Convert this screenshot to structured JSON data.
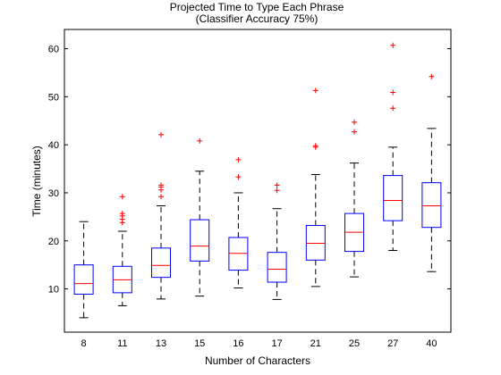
{
  "chart_data": {
    "type": "box",
    "title": "Projected Time to Type Each Phrase",
    "subtitle": "(Classifier Accuracy 75%)",
    "xlabel": "Number of Characters",
    "ylabel": "Time (minutes)",
    "ylim": [
      1,
      64
    ],
    "yticks": [
      10,
      20,
      30,
      40,
      50,
      60
    ],
    "grid": false,
    "colors": {
      "box": "#0000ff",
      "median": "#ff0000",
      "whisker": "#000000",
      "outlier": "#ff0000"
    },
    "categories": [
      "8",
      "11",
      "13",
      "15",
      "16",
      "17",
      "21",
      "25",
      "27",
      "40"
    ],
    "boxes": [
      {
        "min": 4.0,
        "q1": 8.9,
        "median": 11.1,
        "q3": 15.0,
        "max": 24.0,
        "outliers": []
      },
      {
        "min": 6.5,
        "q1": 9.2,
        "median": 11.9,
        "q3": 14.7,
        "max": 22.0,
        "outliers": [
          23.8,
          24.5,
          25.2,
          25.7,
          29.2
        ]
      },
      {
        "min": 7.9,
        "q1": 12.4,
        "median": 14.9,
        "q3": 18.5,
        "max": 27.3,
        "outliers": [
          29.2,
          30.6,
          31.2,
          31.6,
          42.1
        ]
      },
      {
        "min": 8.5,
        "q1": 15.8,
        "median": 18.9,
        "q3": 24.4,
        "max": 34.5,
        "outliers": [
          40.8
        ]
      },
      {
        "min": 10.2,
        "q1": 13.9,
        "median": 17.4,
        "q3": 20.7,
        "max": 30.0,
        "outliers": [
          33.3,
          36.9
        ]
      },
      {
        "min": 7.8,
        "q1": 11.4,
        "median": 14.1,
        "q3": 17.6,
        "max": 26.7,
        "outliers": [
          30.5,
          31.6
        ]
      },
      {
        "min": 10.5,
        "q1": 16.0,
        "median": 19.5,
        "q3": 23.2,
        "max": 33.8,
        "outliers": [
          39.5,
          39.8,
          51.3
        ]
      },
      {
        "min": 12.5,
        "q1": 17.8,
        "median": 21.8,
        "q3": 25.7,
        "max": 36.2,
        "outliers": [
          42.7,
          44.7
        ]
      },
      {
        "min": 18.0,
        "q1": 24.2,
        "median": 28.4,
        "q3": 33.6,
        "max": 39.5,
        "outliers": [
          47.6,
          50.9,
          60.7
        ]
      },
      {
        "min": 13.6,
        "q1": 22.8,
        "median": 27.3,
        "q3": 32.1,
        "max": 43.4,
        "outliers": [
          54.2
        ]
      }
    ]
  }
}
